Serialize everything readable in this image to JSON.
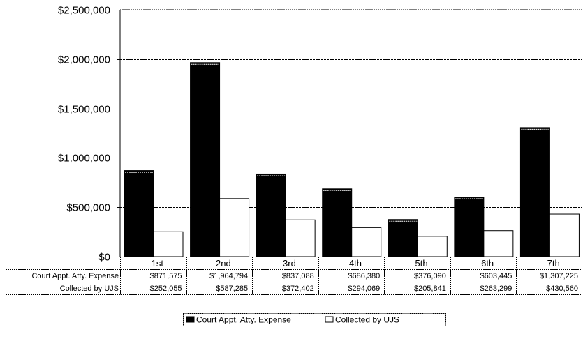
{
  "chart_data": {
    "type": "bar",
    "title": "",
    "xlabel": "",
    "ylabel": "",
    "categories": [
      "1st",
      "2nd",
      "3rd",
      "4th",
      "5th",
      "6th",
      "7th"
    ],
    "series": [
      {
        "name": "Court Appt. Atty. Expense",
        "values": [
          871575,
          1964794,
          837088,
          686380,
          376090,
          603445,
          1307225
        ],
        "labels": [
          "$871,575",
          "$1,964,794",
          "$837,088",
          "$686,380",
          "$376,090",
          "$603,445",
          "$1,307,225"
        ],
        "color": "#000000"
      },
      {
        "name": "Collected by UJS",
        "values": [
          252055,
          587285,
          372402,
          294069,
          205841,
          263299,
          430560
        ],
        "labels": [
          "$252,055",
          "$587,285",
          "$372,402",
          "$294,069",
          "$205,841",
          "$263,299",
          "$430,560"
        ],
        "color": "#ffffff"
      }
    ],
    "ylim": [
      0,
      2500000
    ],
    "yticks": [
      0,
      500000,
      1000000,
      1500000,
      2000000,
      2500000
    ],
    "ytick_labels": [
      "$0",
      "$500,000",
      "$1,000,000",
      "$1,500,000",
      "$2,000,000",
      "$2,500,000"
    ],
    "grid": true,
    "legend": "bottom",
    "data_table": true
  }
}
